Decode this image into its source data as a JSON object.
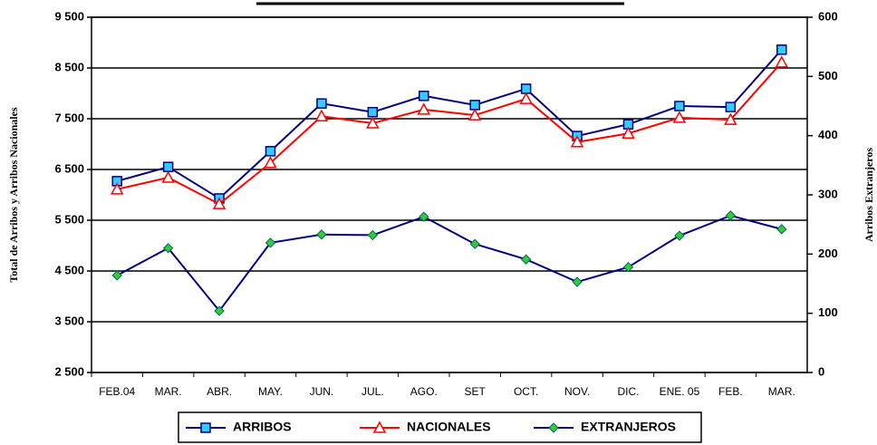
{
  "chart_data": {
    "type": "line",
    "y_label": "Total de Arribos y Arribos Nacionales",
    "y2_label": "Arribos Extranjeros",
    "categories": [
      "FEB.04",
      "MAR.",
      "ABR.",
      "MAY.",
      "JUN.",
      "JUL.",
      "AGO.",
      "SET",
      "OCT.",
      "NOV.",
      "DIC.",
      "ENE. 05",
      "FEB.",
      "MAR."
    ],
    "series": [
      {
        "name": "ARRIBOS",
        "color": "#000080",
        "values": [
          6270,
          6550,
          5930,
          6860,
          7800,
          7630,
          7950,
          7770,
          8090,
          7160,
          7390,
          7750,
          7730,
          8860
        ]
      },
      {
        "name": "NACIONALES",
        "color": "#ff0000",
        "values": [
          6110,
          6340,
          5820,
          6630,
          7550,
          7410,
          7680,
          7570,
          7890,
          7040,
          7210,
          7520,
          7480,
          8610
        ]
      },
      {
        "name": "EXTRANJEROS",
        "color": "#000080",
        "axis": "y2",
        "values": [
          164,
          210,
          104,
          219,
          233,
          232,
          263,
          217,
          191,
          153,
          178,
          231,
          265,
          242
        ]
      }
    ],
    "ylim": [
      2500,
      9500
    ],
    "yticks": [
      {
        "value": 2500,
        "label": "2 500"
      },
      {
        "value": 3500,
        "label": "3 500"
      },
      {
        "value": 4500,
        "label": "4 500"
      },
      {
        "value": 5500,
        "label": "5 500"
      },
      {
        "value": 6500,
        "label": "6 500"
      },
      {
        "value": 7500,
        "label": "7 500"
      },
      {
        "value": 8500,
        "label": "8 500"
      },
      {
        "value": 9500,
        "label": "9 500"
      }
    ],
    "y2lim": [
      0,
      600
    ],
    "y2ticks": [
      0,
      100,
      200,
      300,
      400,
      500,
      600
    ],
    "grid": true
  }
}
